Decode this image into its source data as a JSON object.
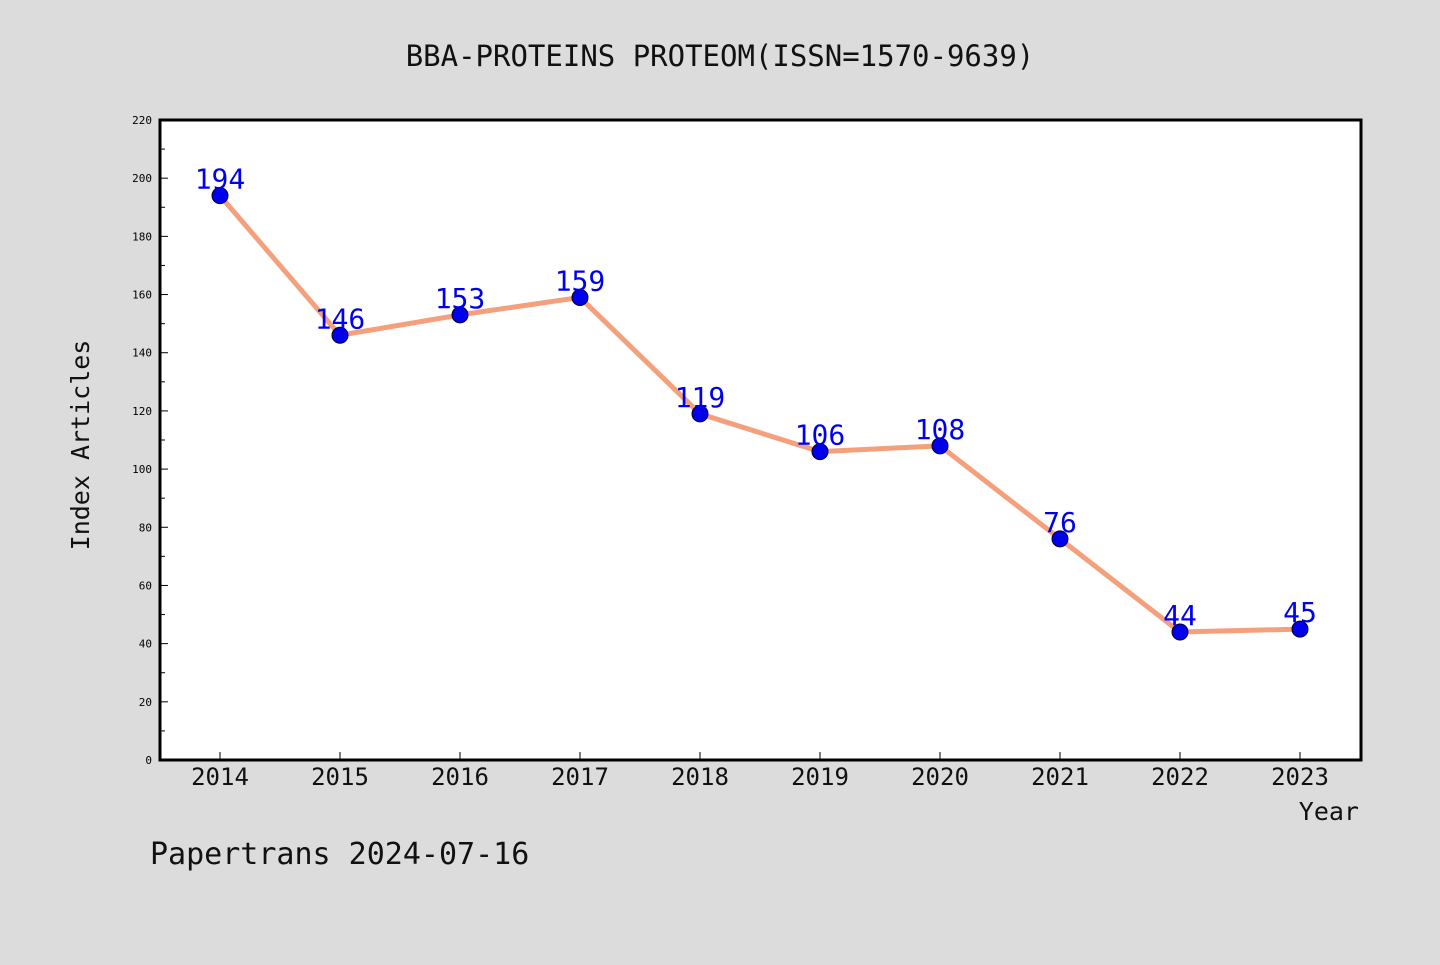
{
  "chart_data": {
    "type": "line",
    "title": "BBA-PROTEINS PROTEOM(ISSN=1570-9639)",
    "xlabel": "Year",
    "ylabel": "Index Articles",
    "categories": [
      "2014",
      "2015",
      "2016",
      "2017",
      "2018",
      "2019",
      "2020",
      "2021",
      "2022",
      "2023"
    ],
    "series": [
      {
        "values": [
          194,
          146,
          153,
          159,
          119,
          106,
          108,
          76,
          44,
          45
        ]
      }
    ],
    "ylim": [
      0,
      220
    ],
    "yticks": [
      "0",
      "20",
      "40",
      "60",
      "80",
      "100",
      "120",
      "140",
      "160",
      "180",
      "200",
      "220"
    ],
    "data_labels": [
      "194",
      "146",
      "153",
      "159",
      "119",
      "106",
      "108",
      "76",
      "44",
      "45"
    ],
    "grid": false,
    "legend": "none"
  },
  "footer": {
    "text": "Papertrans 2024-07-16"
  },
  "colors": {
    "background": "#dcdcdc",
    "plot_area": "#ffffff",
    "line": "#f4a07c",
    "marker": "#0000ee",
    "data_label": "#0000ee",
    "axis": "#000000"
  }
}
